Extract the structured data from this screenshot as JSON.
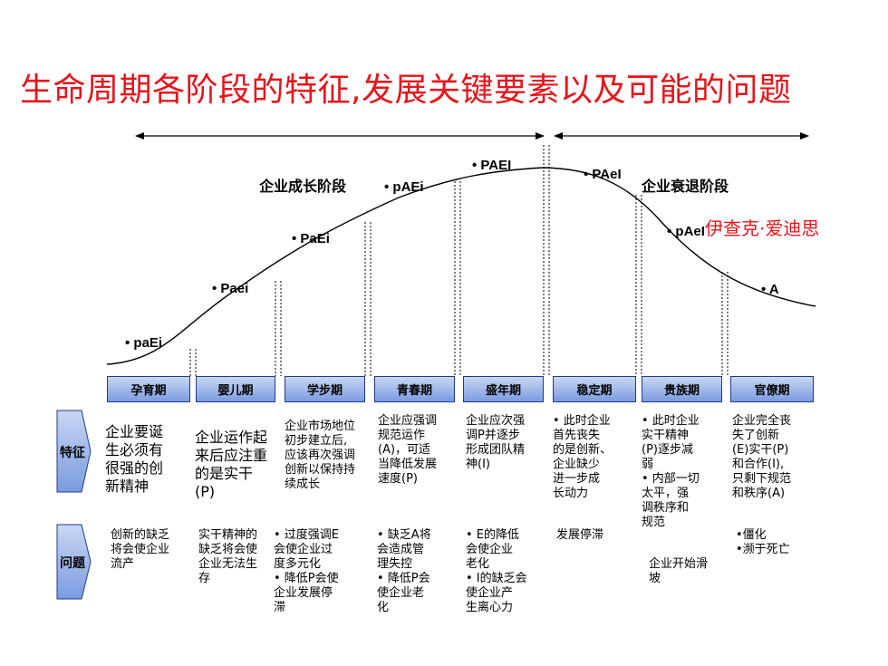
{
  "title": "生命周期各阶段的特征,发展关键要素以及可能的问题",
  "author": "伊查克·爱迪思",
  "growth_label": "企业成长阶段",
  "decline_label": "企业衰退阶段",
  "codes": {
    "paEi": "• paEi",
    "Paei": "• Paei",
    "PaEi": "• PaEi",
    "pAEi": "• pAEi",
    "PAEI": "• PAEI",
    "PAeI": "• PAeI",
    "pAeI": "• pAeI",
    "A": "• A"
  },
  "phases": [
    "孕育期",
    "婴儿期",
    "学步期",
    "青春期",
    "盛年期",
    "稳定期",
    "贵族期",
    "官僚期"
  ],
  "row_labels": {
    "features": "特征",
    "problems": "问题"
  },
  "features": [
    "企业要诞\n生必须有\n很强的创\n新精神",
    "企业运作起\n来后应注重\n的是实干\n(P)",
    "企业市场地位\n初步建立后,\n应该再次强调\n创新以保持持\n续成长",
    "企业应强调\n规范运作\n(A)，可适\n当降低发展\n速度(P)",
    "企业应次强\n调P并逐步\n形成团队精\n神(I)",
    "• 此时企业\n   首先丧失\n   的是创新、\n   企业缺少\n   进一步成\n   长动力",
    "• 此时企业\n   实干精神\n   (P)逐步减\n   弱\n• 内部一切\n   太平，强\n   调秩序和\n   规范",
    "企业完全丧\n失了创新\n(E)实干(P)\n和合作(I),\n只剩下规范\n和秩序(A)"
  ],
  "problems": [
    "创新的缺乏\n将会使企业\n流产",
    "实干精神的\n缺乏将会使\n企业无法生\n存",
    "• 过度强调E\n   会使企业过\n   度多元化\n• 降低P会使\n   企业发展停\n   滞",
    "• 缺乏A将\n   会造成管\n   理失控\n• 降低P会\n   使企业老\n   化",
    "• E的降低\n   会使企业\n   老化\n• I的缺乏会\n   使企业产\n   生离心力",
    "发展停滞",
    "企业开始滑\n坡",
    "•僵化\n•濒于死亡"
  ],
  "colors": {
    "title": "#e8141b",
    "phase_box_top": "#c9d7f3",
    "phase_box_bottom": "#7b9be0",
    "phase_border": "#1f3a8a"
  }
}
